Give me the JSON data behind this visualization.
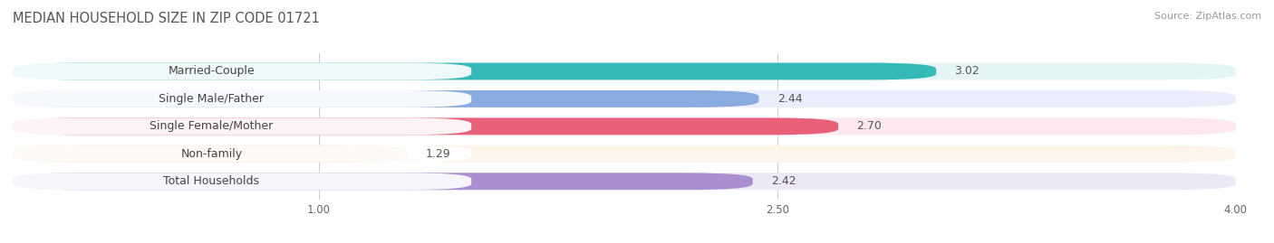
{
  "title": "MEDIAN HOUSEHOLD SIZE IN ZIP CODE 01721",
  "source": "Source: ZipAtlas.com",
  "categories": [
    "Married-Couple",
    "Single Male/Father",
    "Single Female/Mother",
    "Non-family",
    "Total Households"
  ],
  "values": [
    3.02,
    2.44,
    2.7,
    1.29,
    2.42
  ],
  "bar_colors": [
    "#35b8b8",
    "#8aabe0",
    "#e8607a",
    "#f0c080",
    "#a98fd0"
  ],
  "bar_bg_colors": [
    "#e5f5f5",
    "#eaeefc",
    "#fce8ee",
    "#fdf5ea",
    "#ede8f8"
  ],
  "xlim": [
    0,
    4.0
  ],
  "xticks": [
    1.0,
    2.5,
    4.0
  ],
  "title_fontsize": 10.5,
  "source_fontsize": 8,
  "label_fontsize": 9,
  "value_fontsize": 9,
  "background_color": "#ffffff"
}
